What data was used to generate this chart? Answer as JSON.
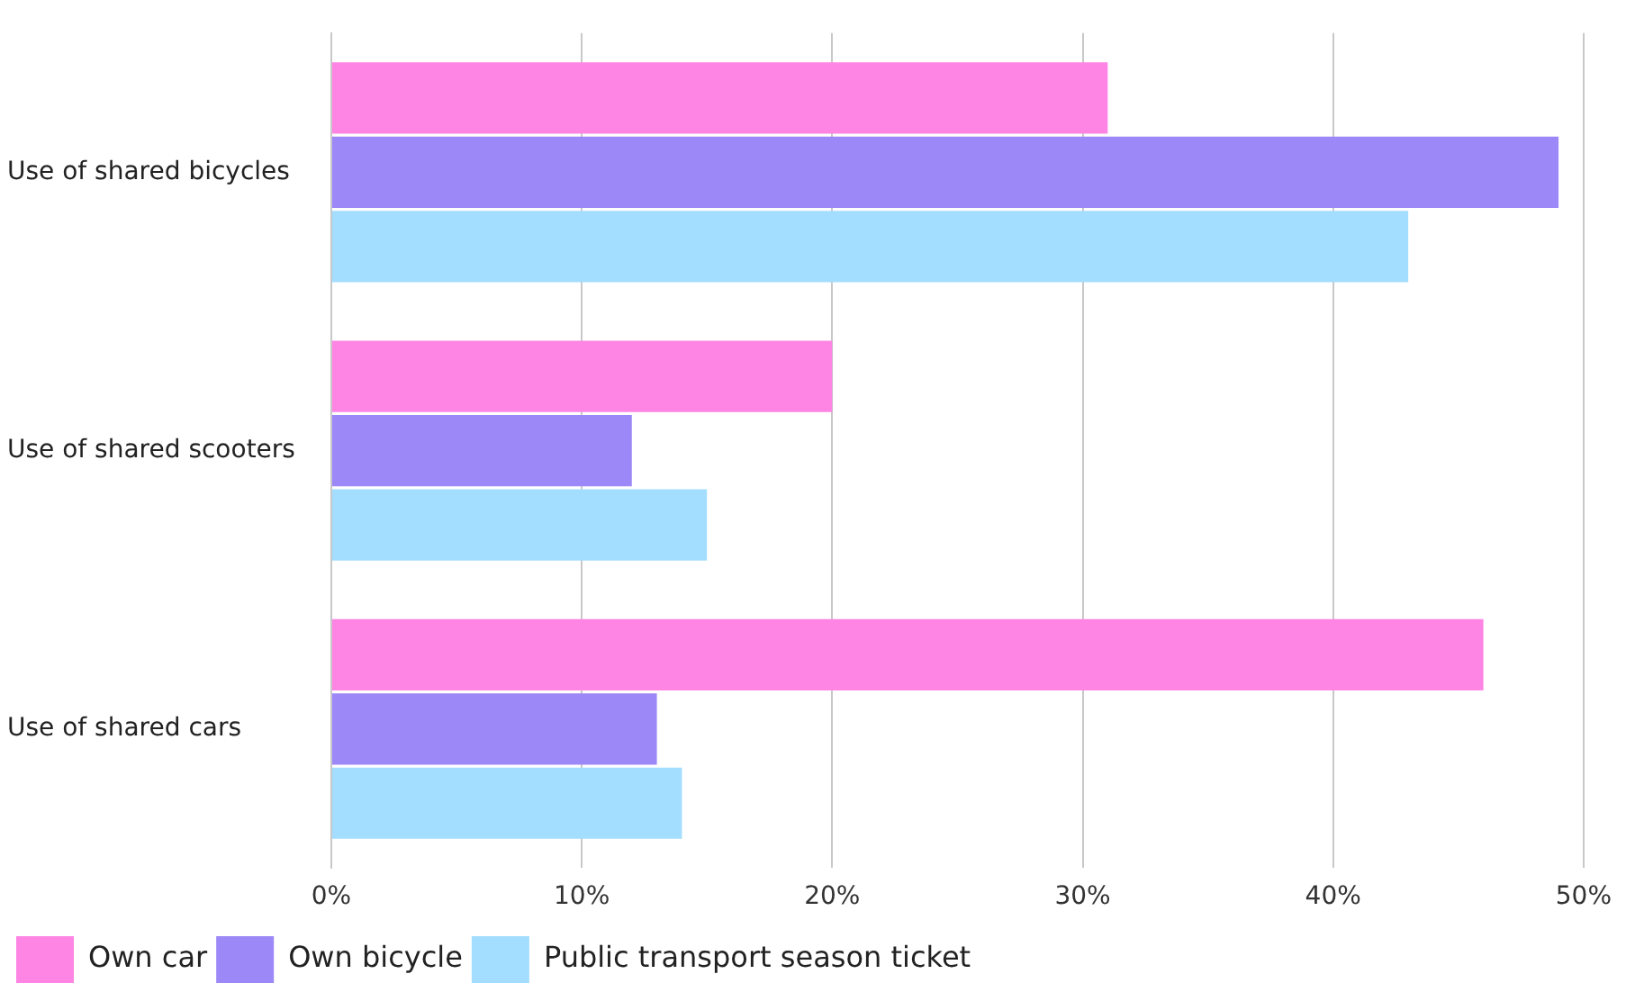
{
  "chart_data": {
    "type": "bar",
    "orientation": "horizontal",
    "categories": [
      "Use of shared bicycles",
      "Use of shared scooters",
      "Use of shared cars"
    ],
    "series": [
      {
        "name": "Own car",
        "color": "#ff85e4",
        "values": [
          31,
          20,
          46
        ]
      },
      {
        "name": "Own bicycle",
        "color": "#9c88f7",
        "values": [
          49,
          12,
          13
        ]
      },
      {
        "name": "Public transport season ticket",
        "color": "#a3ddff",
        "values": [
          43,
          15,
          14
        ]
      }
    ],
    "xlim": [
      0,
      50
    ],
    "xticks": [
      {
        "value": 0,
        "label": "0%"
      },
      {
        "value": 10,
        "label": "10%"
      },
      {
        "value": 20,
        "label": "20%"
      },
      {
        "value": 30,
        "label": "30%"
      },
      {
        "value": 40,
        "label": "40%"
      },
      {
        "value": 50,
        "label": "50%"
      }
    ],
    "grid": "x",
    "legend": "bottom left"
  }
}
